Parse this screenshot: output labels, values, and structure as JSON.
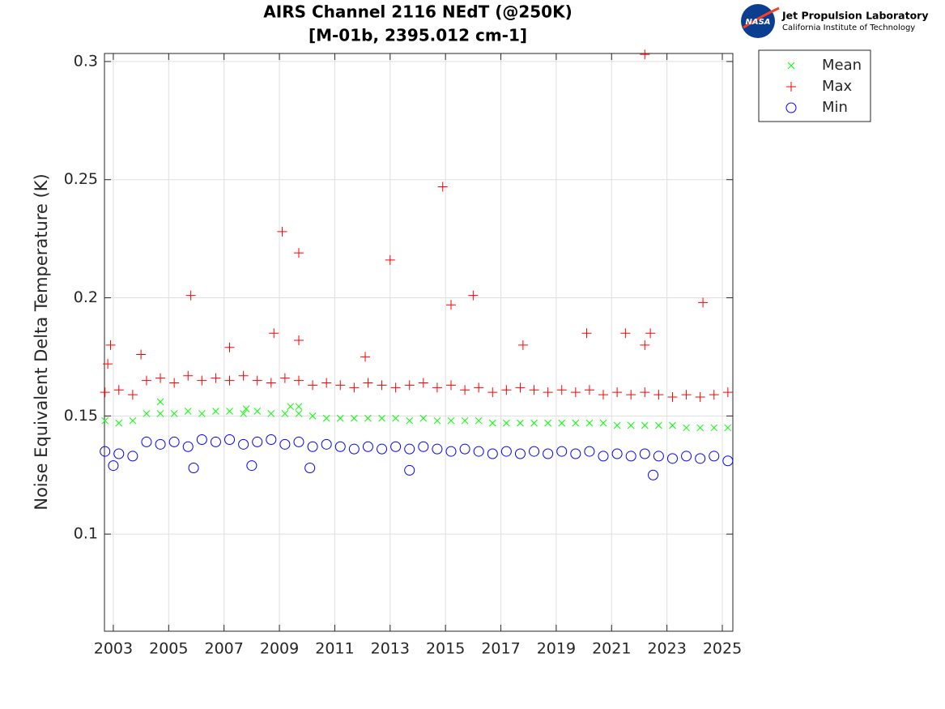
{
  "chart_data": {
    "type": "scatter",
    "title": "AIRS Channel 2116 NEdT (@250K)",
    "subtitle": "[M-01b, 2395.012 cm-1]",
    "ylabel": "Noise Equivalent Delta Temperature (K)",
    "xlim": [
      2002.68,
      2025.38
    ],
    "ylim": [
      0.0589,
      0.3034
    ],
    "xticks": [
      2003,
      2005,
      2007,
      2009,
      2011,
      2013,
      2015,
      2017,
      2019,
      2021,
      2023,
      2025
    ],
    "yticks": [
      0.1,
      0.15,
      0.2,
      0.25,
      0.3
    ],
    "grid": true,
    "legend": "outside-top-right",
    "series": [
      {
        "name": "Mean",
        "color": "#00ff00",
        "marker": "x",
        "x": [
          2002.7,
          2003.2,
          2003.7,
          2004.2,
          2004.7,
          2005.2,
          2005.7,
          2006.2,
          2006.7,
          2007.2,
          2007.7,
          2008.2,
          2008.7,
          2009.2,
          2009.7,
          2010.2,
          2010.7,
          2011.2,
          2011.7,
          2012.2,
          2012.7,
          2013.2,
          2013.7,
          2014.2,
          2014.7,
          2015.2,
          2015.7,
          2016.2,
          2016.7,
          2017.2,
          2017.7,
          2018.2,
          2018.7,
          2019.2,
          2019.7,
          2020.2,
          2020.7,
          2021.2,
          2021.7,
          2022.2,
          2022.7,
          2023.2,
          2023.7,
          2024.2,
          2024.7,
          2025.2,
          2004.7,
          2009.4,
          2009.7,
          2007.8
        ],
        "values": [
          0.148,
          0.147,
          0.148,
          0.151,
          0.151,
          0.151,
          0.152,
          0.151,
          0.152,
          0.152,
          0.151,
          0.152,
          0.151,
          0.151,
          0.151,
          0.15,
          0.149,
          0.149,
          0.149,
          0.149,
          0.149,
          0.149,
          0.148,
          0.149,
          0.148,
          0.148,
          0.148,
          0.148,
          0.147,
          0.147,
          0.147,
          0.147,
          0.147,
          0.147,
          0.147,
          0.147,
          0.147,
          0.146,
          0.146,
          0.146,
          0.146,
          0.146,
          0.145,
          0.145,
          0.145,
          0.145,
          0.156,
          0.154,
          0.154,
          0.153
        ]
      },
      {
        "name": "Max",
        "color": "#ff0000",
        "marker": "+",
        "x": [
          2002.7,
          2003.2,
          2003.7,
          2004.2,
          2004.7,
          2005.2,
          2005.7,
          2006.2,
          2006.7,
          2007.2,
          2007.7,
          2008.2,
          2008.7,
          2009.2,
          2009.7,
          2010.2,
          2010.7,
          2011.2,
          2011.7,
          2012.2,
          2012.7,
          2013.2,
          2013.7,
          2014.2,
          2014.7,
          2015.2,
          2015.7,
          2016.2,
          2016.7,
          2017.2,
          2017.7,
          2018.2,
          2018.7,
          2019.2,
          2019.7,
          2020.2,
          2020.7,
          2021.2,
          2021.7,
          2022.2,
          2022.7,
          2023.2,
          2023.7,
          2024.2,
          2024.7,
          2025.2,
          2002.8,
          2002.9,
          2004.0,
          2005.8,
          2007.2,
          2008.8,
          2009.1,
          2009.7,
          2009.7,
          2012.1,
          2013.0,
          2014.9,
          2015.2,
          2016.0,
          2017.8,
          2020.1,
          2021.5,
          2022.2,
          2022.2,
          2022.4,
          2024.3
        ],
        "values": [
          0.16,
          0.161,
          0.159,
          0.165,
          0.166,
          0.164,
          0.167,
          0.165,
          0.166,
          0.165,
          0.167,
          0.165,
          0.164,
          0.166,
          0.165,
          0.163,
          0.164,
          0.163,
          0.162,
          0.164,
          0.163,
          0.162,
          0.163,
          0.164,
          0.162,
          0.163,
          0.161,
          0.162,
          0.16,
          0.161,
          0.162,
          0.161,
          0.16,
          0.161,
          0.16,
          0.161,
          0.159,
          0.16,
          0.159,
          0.16,
          0.159,
          0.158,
          0.159,
          0.158,
          0.159,
          0.16,
          0.172,
          0.18,
          0.176,
          0.201,
          0.179,
          0.185,
          0.228,
          0.219,
          0.182,
          0.175,
          0.216,
          0.247,
          0.197,
          0.201,
          0.18,
          0.185,
          0.185,
          0.303,
          0.18,
          0.185,
          0.198
        ]
      },
      {
        "name": "Min",
        "color": "#0000ff",
        "marker": "o",
        "x": [
          2002.7,
          2003.2,
          2003.7,
          2004.2,
          2004.7,
          2005.2,
          2005.7,
          2006.2,
          2006.7,
          2007.2,
          2007.7,
          2008.2,
          2008.7,
          2009.2,
          2009.7,
          2010.2,
          2010.7,
          2011.2,
          2011.7,
          2012.2,
          2012.7,
          2013.2,
          2013.7,
          2014.2,
          2014.7,
          2015.2,
          2015.7,
          2016.2,
          2016.7,
          2017.2,
          2017.7,
          2018.2,
          2018.7,
          2019.2,
          2019.7,
          2020.2,
          2020.7,
          2021.2,
          2021.7,
          2022.2,
          2022.7,
          2023.2,
          2023.7,
          2024.2,
          2024.7,
          2025.2,
          2005.9,
          2010.1,
          2013.7,
          2022.5,
          2003.0,
          2008.0
        ],
        "values": [
          0.135,
          0.134,
          0.133,
          0.139,
          0.138,
          0.139,
          0.137,
          0.14,
          0.139,
          0.14,
          0.138,
          0.139,
          0.14,
          0.138,
          0.139,
          0.137,
          0.138,
          0.137,
          0.136,
          0.137,
          0.136,
          0.137,
          0.136,
          0.137,
          0.136,
          0.135,
          0.136,
          0.135,
          0.134,
          0.135,
          0.134,
          0.135,
          0.134,
          0.135,
          0.134,
          0.135,
          0.133,
          0.134,
          0.133,
          0.134,
          0.133,
          0.132,
          0.133,
          0.132,
          0.133,
          0.131,
          0.128,
          0.128,
          0.127,
          0.125,
          0.129,
          0.129
        ]
      }
    ]
  },
  "logo": {
    "badge": "NASA",
    "name": "Jet Propulsion Laboratory",
    "institution": "California Institute of Technology"
  }
}
